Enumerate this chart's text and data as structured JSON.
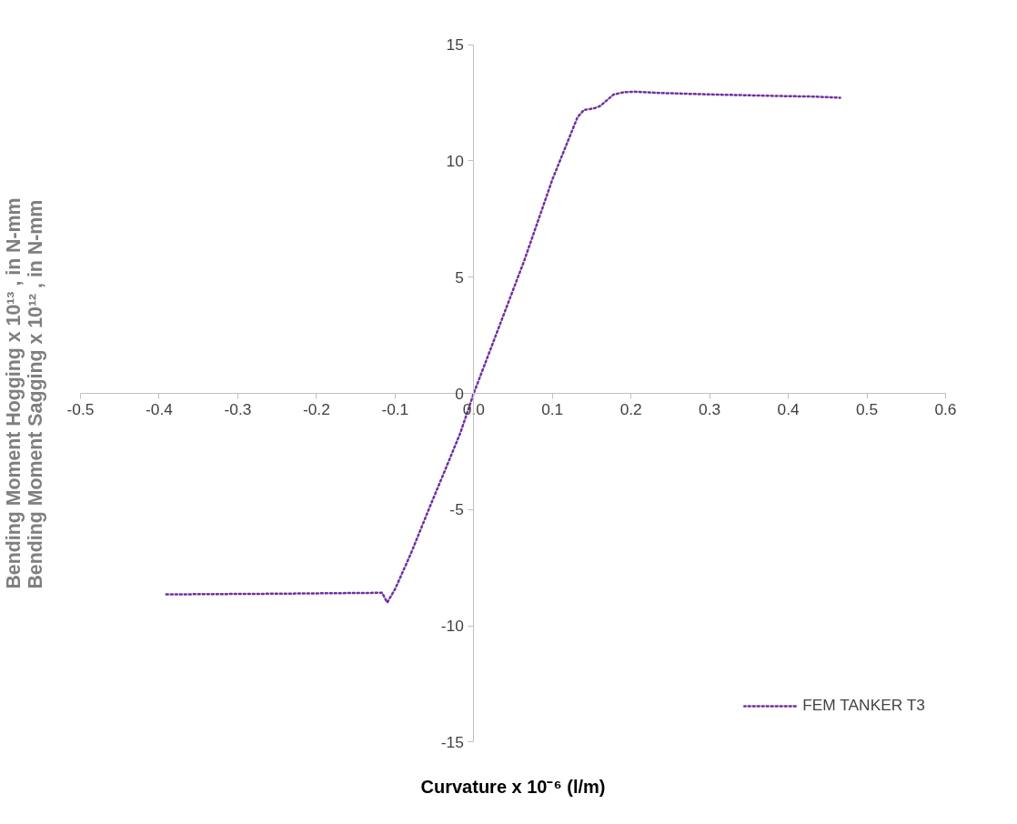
{
  "chart_data": {
    "type": "line",
    "xlabel": "Curvature x 10⁻⁶ (l/m)",
    "ylabel": "Bending Moment Hogging x 10¹³ , in N-mm\nBending Moment Sagging x 10¹² , in N-mm",
    "xlim": [
      -0.5,
      0.6
    ],
    "xticks": [
      -0.5,
      -0.4,
      -0.3,
      -0.2,
      -0.1,
      {
        "value": 0,
        "label": "0.0"
      },
      0.1,
      0.2,
      0.3,
      0.4,
      0.5,
      0.6
    ],
    "ylim": [
      -15,
      15
    ],
    "yticks": [
      -15,
      -10,
      -5,
      0,
      5,
      10,
      15
    ],
    "grid": false,
    "legend": "bottom right",
    "line_style": "dotted",
    "marker": "none",
    "series": [
      {
        "name": "FEM TANKER T3",
        "color": "#7030a0",
        "x": [
          -0.391,
          -0.25,
          -0.1165,
          -0.11,
          -0.1,
          -0.08,
          -0.054,
          -0.0375,
          -0.017,
          0,
          0.064,
          0.1,
          0.132,
          0.14,
          0.154,
          0.161,
          0.178,
          0.19,
          0.203,
          0.233,
          0.302,
          0.394,
          0.431,
          0.466
        ],
        "values": [
          -8.65,
          -8.62,
          -8.58,
          -9.0,
          -8.42,
          -6.9,
          -4.73,
          -3.39,
          -1.7,
          0,
          5.69,
          9.2,
          11.88,
          12.19,
          12.27,
          12.37,
          12.86,
          12.95,
          12.98,
          12.93,
          12.86,
          12.79,
          12.77,
          12.72
        ]
      }
    ]
  }
}
